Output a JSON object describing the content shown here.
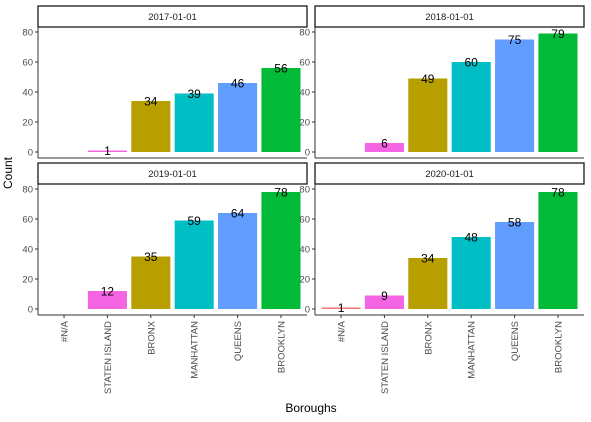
{
  "chart_data": {
    "type": "bar",
    "xlabel": "Boroughs",
    "ylabel": "Count",
    "ylim": [
      0,
      80
    ],
    "y_ticks": [
      0,
      20,
      40,
      60,
      80
    ],
    "grid": false,
    "categories": [
      "#N/A",
      "STATEN ISLAND",
      "BRONX",
      "MANHATTAN",
      "QUEENS",
      "BROOKLYN"
    ],
    "category_colors": {
      "#N/A": "#F8766D",
      "STATEN ISLAND": "#F564E3",
      "BRONX": "#B79F00",
      "MANHATTAN": "#00BFC4",
      "QUEENS": "#619CFF",
      "BROOKLYN": "#00BA38"
    },
    "panels": [
      {
        "label": "2017-01-01",
        "values": [
          null,
          1,
          34,
          39,
          46,
          56
        ]
      },
      {
        "label": "2018-01-01",
        "values": [
          null,
          6,
          49,
          60,
          75,
          79
        ]
      },
      {
        "label": "2019-01-01",
        "values": [
          null,
          12,
          35,
          59,
          64,
          78
        ]
      },
      {
        "label": "2020-01-01",
        "values": [
          1,
          9,
          34,
          48,
          58,
          78
        ]
      }
    ]
  }
}
